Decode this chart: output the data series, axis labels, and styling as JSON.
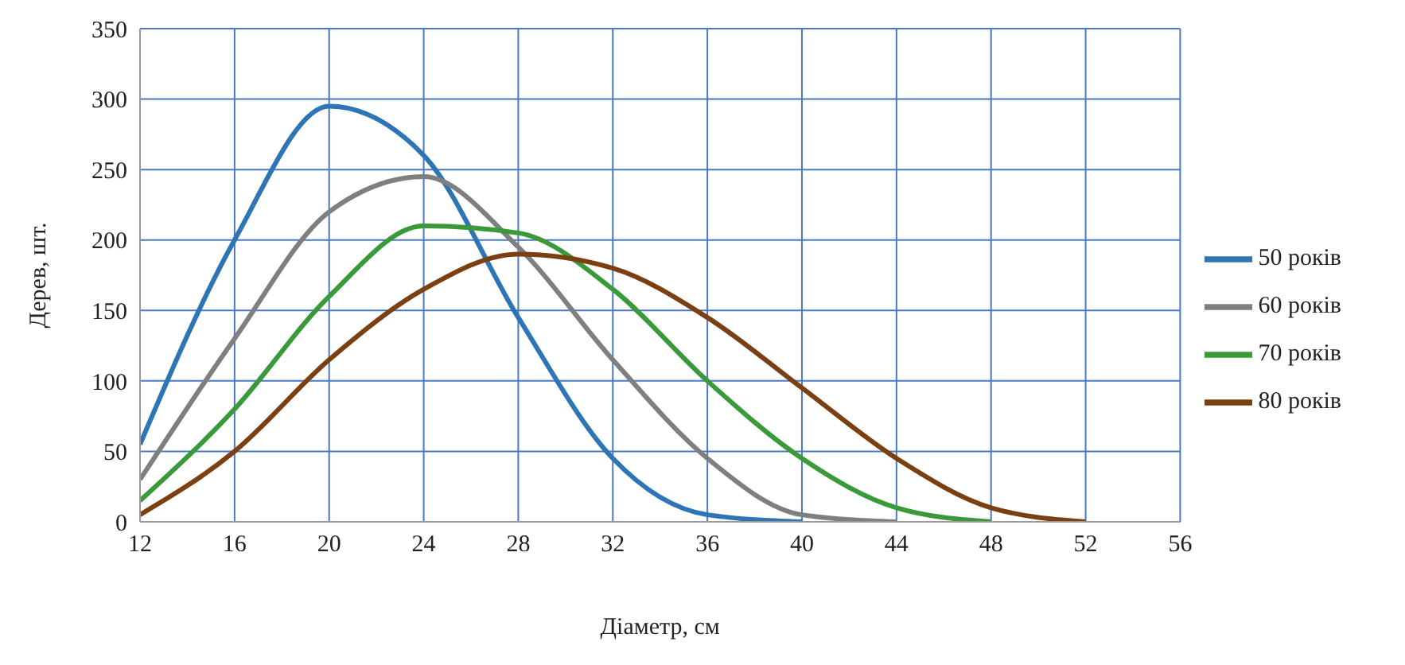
{
  "chart_data": {
    "type": "line",
    "xlabel": "Діаметр, см",
    "ylabel": "Дерев, шт.",
    "xlim": [
      12,
      56
    ],
    "xticks": [
      12,
      16,
      20,
      24,
      28,
      32,
      36,
      40,
      44,
      48,
      52,
      56
    ],
    "ylim": [
      0,
      350
    ],
    "yticks": [
      0,
      50,
      100,
      150,
      200,
      250,
      300,
      350
    ],
    "grid": true,
    "legend": "right",
    "marker": "none",
    "line_style": "solid",
    "series": [
      {
        "name": "50 років",
        "color": "#2e75b6",
        "x": [
          12,
          16,
          20,
          24,
          28,
          32,
          36,
          40
        ],
        "values": [
          55,
          200,
          295,
          260,
          145,
          45,
          5,
          0
        ]
      },
      {
        "name": "60 років",
        "color": "#7f7f7f",
        "x": [
          12,
          16,
          20,
          24,
          28,
          32,
          36,
          40,
          44
        ],
        "values": [
          30,
          130,
          220,
          245,
          195,
          115,
          45,
          5,
          0
        ]
      },
      {
        "name": "70 років",
        "color": "#3a9a3a",
        "x": [
          12,
          16,
          20,
          24,
          28,
          32,
          36,
          40,
          44,
          48
        ],
        "values": [
          15,
          80,
          160,
          210,
          205,
          165,
          100,
          45,
          10,
          0
        ]
      },
      {
        "name": "80 років",
        "color": "#7b3f12",
        "x": [
          12,
          16,
          20,
          24,
          28,
          32,
          36,
          40,
          44,
          48,
          52
        ],
        "values": [
          5,
          50,
          115,
          165,
          190,
          180,
          145,
          95,
          45,
          10,
          0
        ]
      }
    ]
  }
}
